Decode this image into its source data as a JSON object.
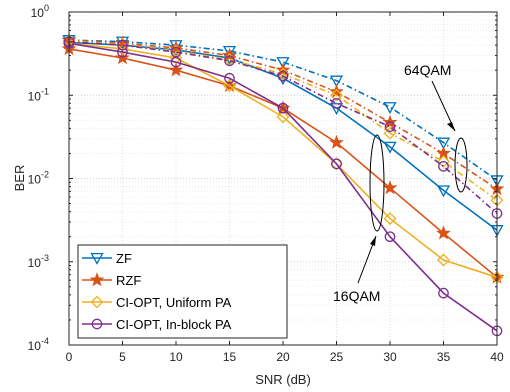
{
  "chart_data": {
    "type": "line",
    "xlabel": "SNR (dB)",
    "ylabel": "BER",
    "xlim": [
      0,
      40
    ],
    "ylim": [
      0.0001,
      1
    ],
    "yscale": "log",
    "grid": true,
    "legend_position": "bottom-left",
    "x": [
      0,
      5,
      10,
      15,
      20,
      25,
      30,
      35,
      40
    ],
    "xtick_labels": [
      "0",
      "5",
      "10",
      "15",
      "20",
      "25",
      "30",
      "35",
      "40"
    ],
    "ytick_labels": [
      {
        "value": 1,
        "base": "10",
        "exp": "0"
      },
      {
        "value": 0.1,
        "base": "10",
        "exp": "-1"
      },
      {
        "value": 0.01,
        "base": "10",
        "exp": "-2"
      },
      {
        "value": 0.001,
        "base": "10",
        "exp": "-3"
      },
      {
        "value": 0.0001,
        "base": "10",
        "exp": "-4"
      }
    ],
    "series": [
      {
        "name": "ZF",
        "color": "#0072BD",
        "marker": "triangle-down",
        "group": "16QAM",
        "values": [
          0.43,
          0.4,
          0.35,
          0.28,
          0.16,
          0.07,
          0.024,
          0.0072,
          0.0024
        ]
      },
      {
        "name": "RZF",
        "color": "#D95319",
        "marker": "star",
        "group": "16QAM",
        "values": [
          0.36,
          0.28,
          0.2,
          0.13,
          0.07,
          0.027,
          0.0077,
          0.0022,
          0.00065
        ]
      },
      {
        "name": "CI-OPT, Uniform PA",
        "color": "#EDB120",
        "marker": "diamond",
        "group": "16QAM",
        "values": [
          0.42,
          0.36,
          0.28,
          0.13,
          0.055,
          0.015,
          0.0033,
          0.00105,
          0.00065
        ]
      },
      {
        "name": "CI-OPT, In-block PA",
        "color": "#7E2F8E",
        "marker": "circle",
        "group": "16QAM",
        "values": [
          0.42,
          0.33,
          0.25,
          0.16,
          0.07,
          0.015,
          0.002,
          0.00042,
          0.000148
        ]
      },
      {
        "name": "",
        "color": "#0072BD",
        "marker": "triangle-down",
        "group": "64QAM",
        "values": [
          0.46,
          0.44,
          0.4,
          0.34,
          0.25,
          0.15,
          0.072,
          0.027,
          0.0095
        ]
      },
      {
        "name": "",
        "color": "#D95319",
        "marker": "star",
        "group": "64QAM",
        "values": [
          0.46,
          0.42,
          0.37,
          0.3,
          0.2,
          0.11,
          0.047,
          0.02,
          0.0075
        ]
      },
      {
        "name": "",
        "color": "#EDB120",
        "marker": "diamond",
        "group": "64QAM",
        "values": [
          0.45,
          0.41,
          0.34,
          0.27,
          0.18,
          0.1,
          0.035,
          0.016,
          0.0055
        ]
      },
      {
        "name": "",
        "color": "#7E2F8E",
        "marker": "circle",
        "group": "64QAM",
        "values": [
          0.44,
          0.4,
          0.33,
          0.26,
          0.17,
          0.08,
          0.042,
          0.014,
          0.0038
        ]
      }
    ],
    "annotations": [
      "64QAM",
      "16QAM"
    ]
  }
}
